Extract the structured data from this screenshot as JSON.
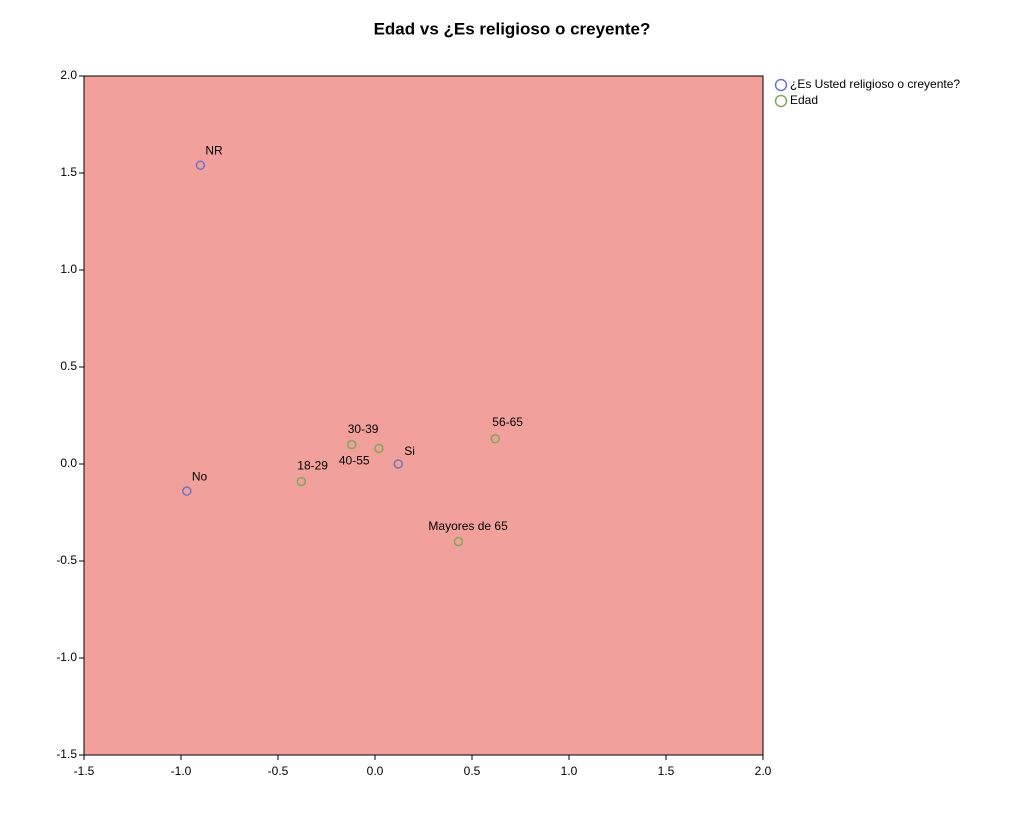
{
  "chart_data": {
    "type": "scatter",
    "title": "Edad vs ¿Es religioso o creyente?",
    "series": [
      {
        "name": "¿Es Usted religioso o creyente?",
        "color": "#6f74c0",
        "labels": [
          "NR",
          "No",
          "Si"
        ],
        "x": [
          -0.9,
          -0.97,
          0.12
        ],
        "values": [
          1.54,
          -0.14,
          0.0
        ]
      },
      {
        "name": "Edad",
        "color": "#7fa85a",
        "labels": [
          "18-29",
          "30-39",
          "40-55",
          "56-65",
          "Mayores de 65"
        ],
        "x": [
          -0.38,
          -0.12,
          0.02,
          0.62,
          0.43
        ],
        "values": [
          -0.09,
          0.1,
          0.08,
          0.13,
          -0.4
        ]
      }
    ],
    "xlim": [
      -1.5,
      2.0
    ],
    "xticks": [
      -1.5,
      {
        "value": -1.0,
        "label": "-1.0"
      },
      -0.5,
      {
        "value": 0.0,
        "label": "0.0"
      },
      0.5,
      {
        "value": 1.0,
        "label": "1.0"
      },
      1.5,
      {
        "value": 2.0,
        "label": "2.0"
      }
    ],
    "ylim": [
      -1.5,
      2.0
    ],
    "yticks": [
      -1.5,
      {
        "value": -1.0,
        "label": "-1.0"
      },
      -0.5,
      {
        "value": 0.0,
        "label": "0.0"
      },
      0.5,
      {
        "value": 1.0,
        "label": "1.0"
      },
      1.5,
      {
        "value": 2.0,
        "label": "2.0"
      }
    ],
    "plot_color": "#f2a09c",
    "legend": "right"
  }
}
